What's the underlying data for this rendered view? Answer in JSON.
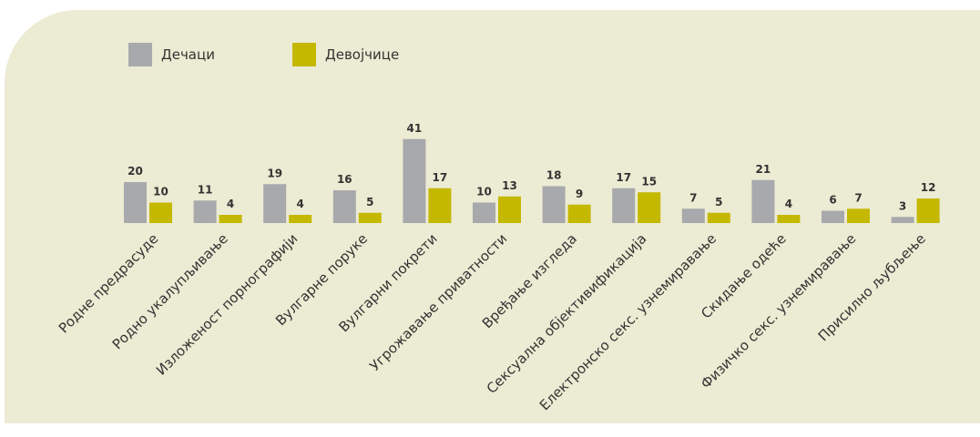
{
  "chart_data": {
    "type": "bar",
    "categories": [
      "Родне предрасуде",
      "Родно укалупљивање",
      "Изложеност порнографији",
      "Вулгарне поруке",
      "Вулгарни покрети",
      "Угрожавање приватности",
      "Вређање изгледа",
      "Сексуална објективификација",
      "Електронско секс. узнемиравање",
      "Скидање одеће",
      "Физичко секс. узнемиравање",
      "Присилно љубљење"
    ],
    "series": [
      {
        "name": "Дечаци",
        "color": "#a7a9ac",
        "values": [
          20,
          11,
          19,
          16,
          41,
          10,
          18,
          17,
          7,
          21,
          6,
          3
        ]
      },
      {
        "name": "Девојчице",
        "color": "#c4b800",
        "values": [
          10,
          4,
          4,
          5,
          17,
          13,
          9,
          15,
          5,
          4,
          7,
          12
        ]
      }
    ],
    "legend_position": "top-left",
    "grid": false
  }
}
